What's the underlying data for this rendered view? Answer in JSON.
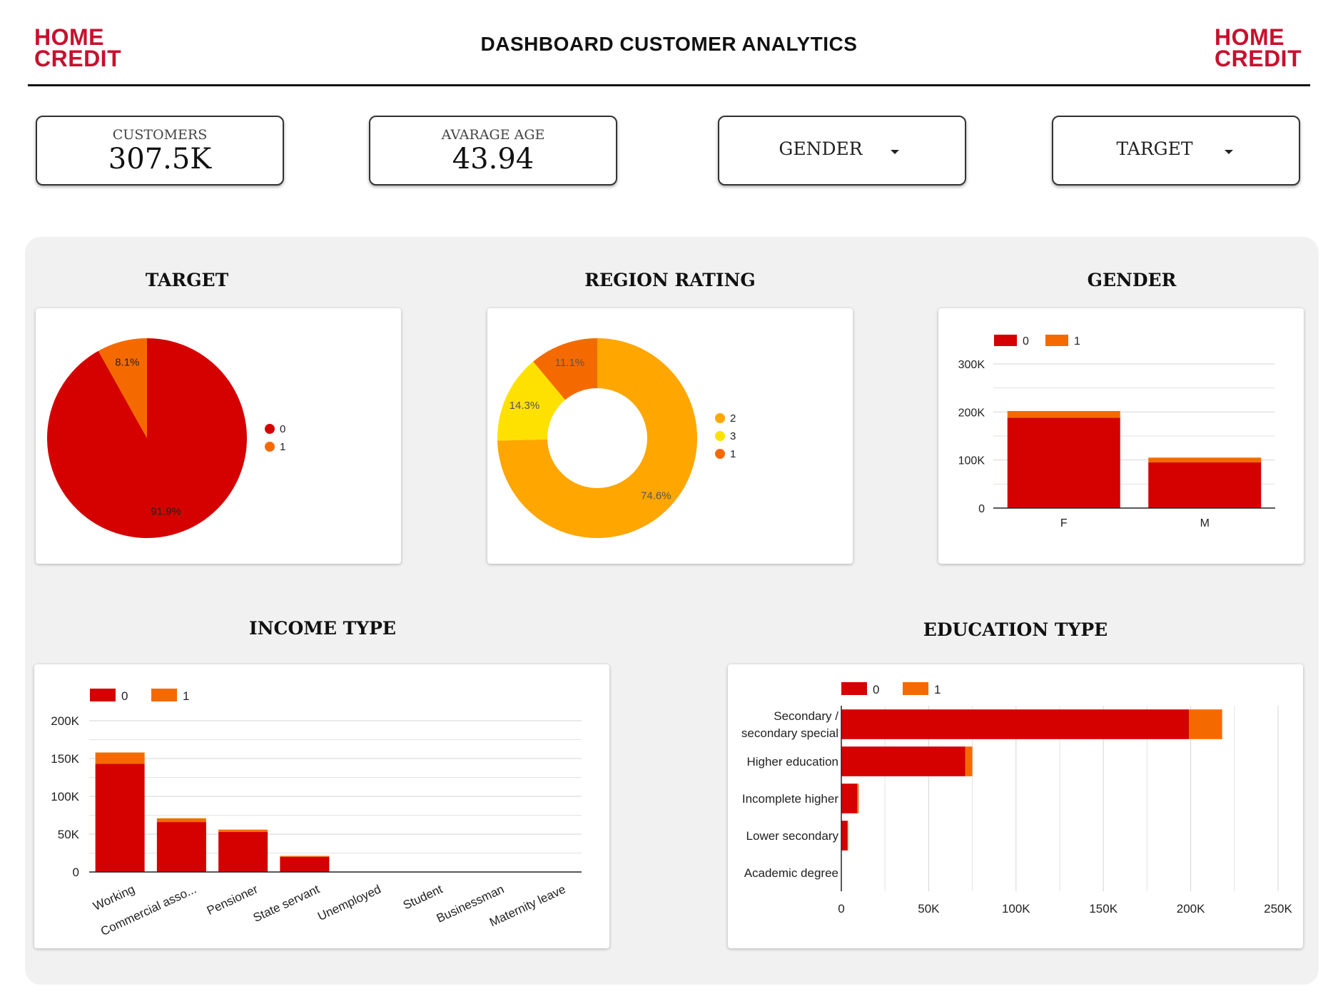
{
  "header": {
    "title": "DASHBOARD CUSTOMER ANALYTICS",
    "logo_line1": "HOME",
    "logo_line2": "CREDIT"
  },
  "kpis": {
    "customers_label": "CUSTOMERS",
    "customers_value": "307.5K",
    "age_label": "AVARAGE AGE",
    "age_value": "43.94"
  },
  "filters": {
    "gender_label": "GENDER",
    "target_label": "TARGET"
  },
  "colors": {
    "red": "#d50000",
    "orange": "#f56a00",
    "amber": "#ffa600",
    "yellow": "#ffe100",
    "brand": "#c8102e"
  },
  "chart_data": [
    {
      "id": "target",
      "type": "pie",
      "title": "TARGET",
      "labels": [
        "0",
        "1"
      ],
      "values": [
        91.9,
        8.1
      ],
      "value_labels": [
        "91.9%",
        "8.1%"
      ],
      "colors": [
        "#d50000",
        "#f56a00"
      ],
      "legend": "right"
    },
    {
      "id": "region",
      "type": "pie",
      "donut": true,
      "title": "REGION RATING",
      "labels": [
        "2",
        "3",
        "1"
      ],
      "values": [
        74.6,
        14.3,
        11.1
      ],
      "value_labels": [
        "74.6%",
        "14.3%",
        "11.1%"
      ],
      "colors": [
        "#ffa600",
        "#ffe100",
        "#f56a00"
      ],
      "legend": "right"
    },
    {
      "id": "gender",
      "type": "bar",
      "stacked": true,
      "title": "GENDER",
      "categories": [
        "F",
        "M"
      ],
      "series": [
        {
          "name": "0",
          "values": [
            188000,
            95000
          ]
        },
        {
          "name": "1",
          "values": [
            14000,
            10000
          ]
        }
      ],
      "ylim": [
        0,
        300000
      ],
      "yticks": [
        0,
        100000,
        200000,
        300000
      ],
      "ytick_labels": [
        "0",
        "100K",
        "200K",
        "300K"
      ],
      "grid": true,
      "legend": "top-left"
    },
    {
      "id": "income",
      "type": "bar",
      "stacked": true,
      "title": "INCOME TYPE",
      "categories": [
        "Working",
        "Commercial asso...",
        "Pensioner",
        "State servant",
        "Unemployed",
        "Student",
        "Businessman",
        "Maternity leave"
      ],
      "series": [
        {
          "name": "0",
          "values": [
            143000,
            66000,
            53000,
            20000,
            15,
            18,
            10,
            3
          ]
        },
        {
          "name": "1",
          "values": [
            15000,
            5000,
            3000,
            1250,
            8,
            0,
            0,
            2
          ]
        }
      ],
      "ylim": [
        0,
        200000
      ],
      "yticks": [
        0,
        50000,
        100000,
        150000,
        200000
      ],
      "ytick_labels": [
        "0",
        "50K",
        "100K",
        "150K",
        "200K"
      ],
      "grid": true,
      "legend": "top-left"
    },
    {
      "id": "education",
      "type": "bar",
      "orientation": "horizontal",
      "stacked": true,
      "title": "EDUCATION TYPE",
      "categories": [
        "Secondary / secondary special",
        "Higher education",
        "Incomplete higher",
        "Lower secondary",
        "Academic degree"
      ],
      "category_lines": [
        [
          "Secondary /",
          "secondary special"
        ],
        [
          "Higher education"
        ],
        [
          "Incomplete higher"
        ],
        [
          "Lower secondary"
        ],
        [
          "Academic degree"
        ]
      ],
      "series": [
        {
          "name": "0",
          "values": [
            199000,
            71000,
            9000,
            3500,
            150
          ]
        },
        {
          "name": "1",
          "values": [
            19000,
            4000,
            900,
            400,
            3
          ]
        }
      ],
      "xlim": [
        0,
        250000
      ],
      "xticks": [
        0,
        50000,
        100000,
        150000,
        200000,
        250000
      ],
      "xtick_labels": [
        "0",
        "50K",
        "100K",
        "150K",
        "200K",
        "250K"
      ],
      "grid": true,
      "legend": "top-left"
    }
  ]
}
